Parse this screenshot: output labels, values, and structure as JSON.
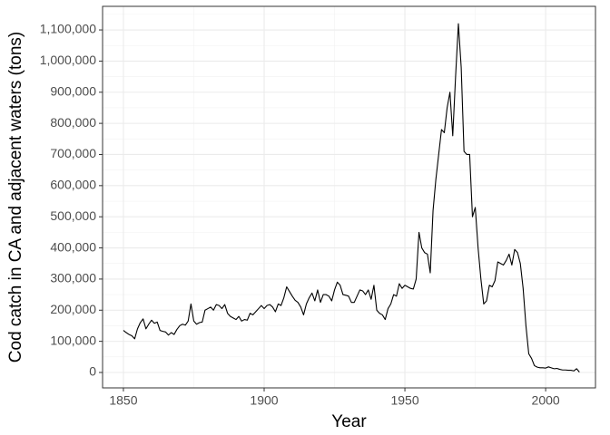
{
  "chart_data": {
    "type": "line",
    "x_label": "Year",
    "y_label": "Cod catch in CA and adjacent waters (tons)",
    "x": [
      1850,
      1851,
      1852,
      1853,
      1854,
      1855,
      1856,
      1857,
      1858,
      1859,
      1860,
      1861,
      1862,
      1863,
      1864,
      1865,
      1866,
      1867,
      1868,
      1869,
      1870,
      1871,
      1872,
      1873,
      1874,
      1875,
      1876,
      1877,
      1878,
      1879,
      1880,
      1881,
      1882,
      1883,
      1884,
      1885,
      1886,
      1887,
      1888,
      1889,
      1890,
      1891,
      1892,
      1893,
      1894,
      1895,
      1896,
      1897,
      1898,
      1899,
      1900,
      1901,
      1902,
      1903,
      1904,
      1905,
      1906,
      1907,
      1908,
      1909,
      1910,
      1911,
      1912,
      1913,
      1914,
      1915,
      1916,
      1917,
      1918,
      1919,
      1920,
      1921,
      1922,
      1923,
      1924,
      1925,
      1926,
      1927,
      1928,
      1929,
      1930,
      1931,
      1932,
      1933,
      1934,
      1935,
      1936,
      1937,
      1938,
      1939,
      1940,
      1941,
      1942,
      1943,
      1944,
      1945,
      1946,
      1947,
      1948,
      1949,
      1950,
      1951,
      1952,
      1953,
      1954,
      1955,
      1956,
      1957,
      1958,
      1959,
      1960,
      1961,
      1962,
      1963,
      1964,
      1965,
      1966,
      1967,
      1968,
      1969,
      1970,
      1971,
      1972,
      1973,
      1974,
      1975,
      1976,
      1977,
      1978,
      1979,
      1980,
      1981,
      1982,
      1983,
      1984,
      1985,
      1986,
      1987,
      1988,
      1989,
      1990,
      1991,
      1992,
      1993,
      1994,
      1995,
      1996,
      1997,
      1998,
      1999,
      2000,
      2001,
      2002,
      2003,
      2004,
      2005,
      2006,
      2007,
      2008,
      2009,
      2010,
      2011,
      2012
    ],
    "series": [
      {
        "color": "#000000",
        "values": [
          135000,
          128000,
          122000,
          118000,
          108000,
          140000,
          160000,
          172000,
          140000,
          155000,
          168000,
          158000,
          162000,
          135000,
          132000,
          130000,
          120000,
          128000,
          122000,
          138000,
          150000,
          155000,
          152000,
          165000,
          220000,
          165000,
          155000,
          160000,
          162000,
          200000,
          205000,
          210000,
          200000,
          218000,
          215000,
          205000,
          218000,
          190000,
          180000,
          175000,
          170000,
          180000,
          165000,
          170000,
          168000,
          190000,
          185000,
          195000,
          205000,
          215000,
          205000,
          215000,
          218000,
          210000,
          195000,
          220000,
          215000,
          240000,
          275000,
          260000,
          245000,
          232000,
          225000,
          210000,
          185000,
          220000,
          240000,
          255000,
          230000,
          265000,
          225000,
          250000,
          250000,
          245000,
          230000,
          265000,
          290000,
          280000,
          250000,
          248000,
          245000,
          225000,
          225000,
          245000,
          265000,
          262000,
          250000,
          265000,
          235000,
          280000,
          200000,
          190000,
          185000,
          170000,
          205000,
          220000,
          250000,
          245000,
          285000,
          270000,
          280000,
          275000,
          270000,
          268000,
          300000,
          450000,
          400000,
          385000,
          380000,
          320000,
          520000,
          620000,
          700000,
          780000,
          770000,
          850000,
          900000,
          760000,
          950000,
          1120000,
          980000,
          710000,
          700000,
          700000,
          500000,
          530000,
          400000,
          300000,
          220000,
          230000,
          280000,
          275000,
          295000,
          355000,
          350000,
          345000,
          360000,
          380000,
          345000,
          395000,
          385000,
          350000,
          270000,
          150000,
          60000,
          45000,
          22000,
          17000,
          15000,
          15000,
          14000,
          18000,
          15000,
          12000,
          13000,
          10000,
          8000,
          8000,
          7000,
          7000,
          5000,
          12000,
          1000
        ]
      }
    ],
    "xlim": [
      1842.6,
      2017.7
    ],
    "xticks": [
      1850,
      1900,
      1950,
      2000
    ],
    "ylim": [
      -49500,
      1175800
    ],
    "yticks": [
      0,
      {
        "value": 100000,
        "label": "100,000"
      },
      {
        "value": 200000,
        "label": "200,000"
      },
      {
        "value": 300000,
        "label": "300,000"
      },
      {
        "value": 400000,
        "label": "400,000"
      },
      {
        "value": 500000,
        "label": "500,000"
      },
      {
        "value": 600000,
        "label": "600,000"
      },
      {
        "value": 700000,
        "label": "700,000"
      },
      {
        "value": 800000,
        "label": "800,000"
      },
      {
        "value": 900000,
        "label": "900,000"
      },
      {
        "value": 1000000,
        "label": "1,000,000"
      },
      {
        "value": 1100000,
        "label": "1,100,000"
      }
    ],
    "grid": true
  }
}
